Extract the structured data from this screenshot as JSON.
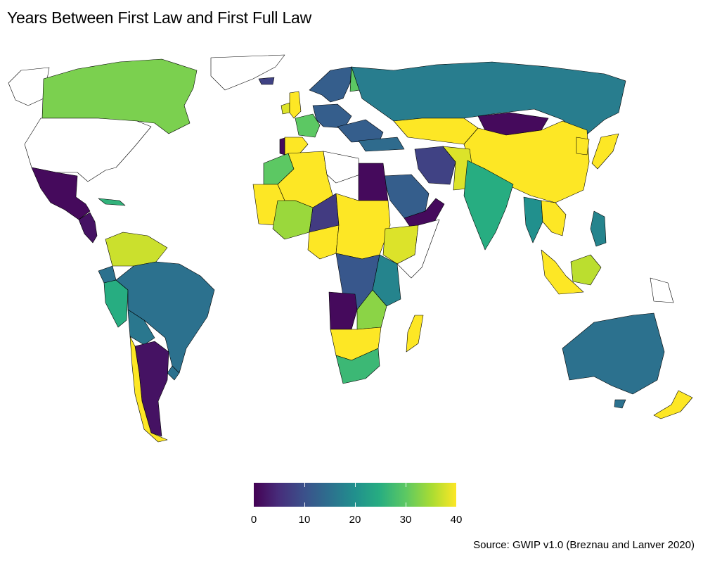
{
  "title": "Years Between First Law and First Full Law",
  "source": "Source: GWIP v1.0 (Breznau and Lanver 2020)",
  "legend": {
    "min": 0,
    "max": 40,
    "ticks": [
      "0",
      "10",
      "20",
      "30",
      "40"
    ],
    "colormap": "viridis",
    "colors": [
      "#440154",
      "#472c7a",
      "#3b518b",
      "#2c718e",
      "#21908d",
      "#27ad81",
      "#5cc863",
      "#aadc32",
      "#fde725"
    ]
  },
  "no_data_color": "#ffffff",
  "regions": [
    {
      "name": "Canada",
      "value": 32
    },
    {
      "name": "United States",
      "value": null
    },
    {
      "name": "Greenland",
      "value": null
    },
    {
      "name": "Alaska",
      "value": null
    },
    {
      "name": "Mexico",
      "value": 1
    },
    {
      "name": "Central America",
      "value": 2
    },
    {
      "name": "Cuba",
      "value": 26
    },
    {
      "name": "Colombia-Venezuela",
      "value": 37
    },
    {
      "name": "Ecuador",
      "value": 15
    },
    {
      "name": "Peru",
      "value": 25
    },
    {
      "name": "Brazil",
      "value": 15
    },
    {
      "name": "Bolivia",
      "value": 16
    },
    {
      "name": "Argentina",
      "value": 2
    },
    {
      "name": "Chile",
      "value": 40
    },
    {
      "name": "Uruguay",
      "value": 15
    },
    {
      "name": "Iceland",
      "value": 8
    },
    {
      "name": "Ireland",
      "value": 38
    },
    {
      "name": "United Kingdom",
      "value": 40
    },
    {
      "name": "Spain",
      "value": 40
    },
    {
      "name": "Portugal",
      "value": 1
    },
    {
      "name": "France",
      "value": 30
    },
    {
      "name": "Germany",
      "value": 12
    },
    {
      "name": "Scandinavia",
      "value": 12
    },
    {
      "name": "Finland",
      "value": 30
    },
    {
      "name": "Russia",
      "value": 17
    },
    {
      "name": "Kazakhstan",
      "value": 40
    },
    {
      "name": "Mongolia",
      "value": 1
    },
    {
      "name": "China",
      "value": 40
    },
    {
      "name": "Japan",
      "value": 40
    },
    {
      "name": "Korea",
      "value": 40
    },
    {
      "name": "Turkey",
      "value": 14
    },
    {
      "name": "Iran",
      "value": 8
    },
    {
      "name": "Afghanistan-Pakistan",
      "value": 38
    },
    {
      "name": "India",
      "value": 25
    },
    {
      "name": "Saudi Arabia",
      "value": 12
    },
    {
      "name": "Yemen-Oman",
      "value": 1
    },
    {
      "name": "Egypt",
      "value": 1
    },
    {
      "name": "Libya",
      "value": null
    },
    {
      "name": "Algeria",
      "value": 40
    },
    {
      "name": "Morocco",
      "value": 30
    },
    {
      "name": "Western Sahara-Mauritania",
      "value": 40
    },
    {
      "name": "Mali",
      "value": 34
    },
    {
      "name": "Niger",
      "value": 7
    },
    {
      "name": "Chad-Sudan",
      "value": 40
    },
    {
      "name": "Nigeria",
      "value": 40
    },
    {
      "name": "Ethiopia",
      "value": 38
    },
    {
      "name": "Somalia",
      "value": null
    },
    {
      "name": "DR Congo",
      "value": 11
    },
    {
      "name": "Angola",
      "value": 1
    },
    {
      "name": "Tanzania",
      "value": 18
    },
    {
      "name": "Zambia",
      "value": 33
    },
    {
      "name": "Namibia-Botswana",
      "value": 40
    },
    {
      "name": "South Africa",
      "value": 27
    },
    {
      "name": "Madagascar",
      "value": 40
    },
    {
      "name": "Southeast Asia",
      "value": 20
    },
    {
      "name": "Thailand-Laos",
      "value": 40
    },
    {
      "name": "Indonesia",
      "value": 40
    },
    {
      "name": "Borneo",
      "value": 36
    },
    {
      "name": "Philippines",
      "value": 18
    },
    {
      "name": "Papua New Guinea",
      "value": null
    },
    {
      "name": "Australia",
      "value": 15
    },
    {
      "name": "New Zealand",
      "value": 40
    }
  ]
}
